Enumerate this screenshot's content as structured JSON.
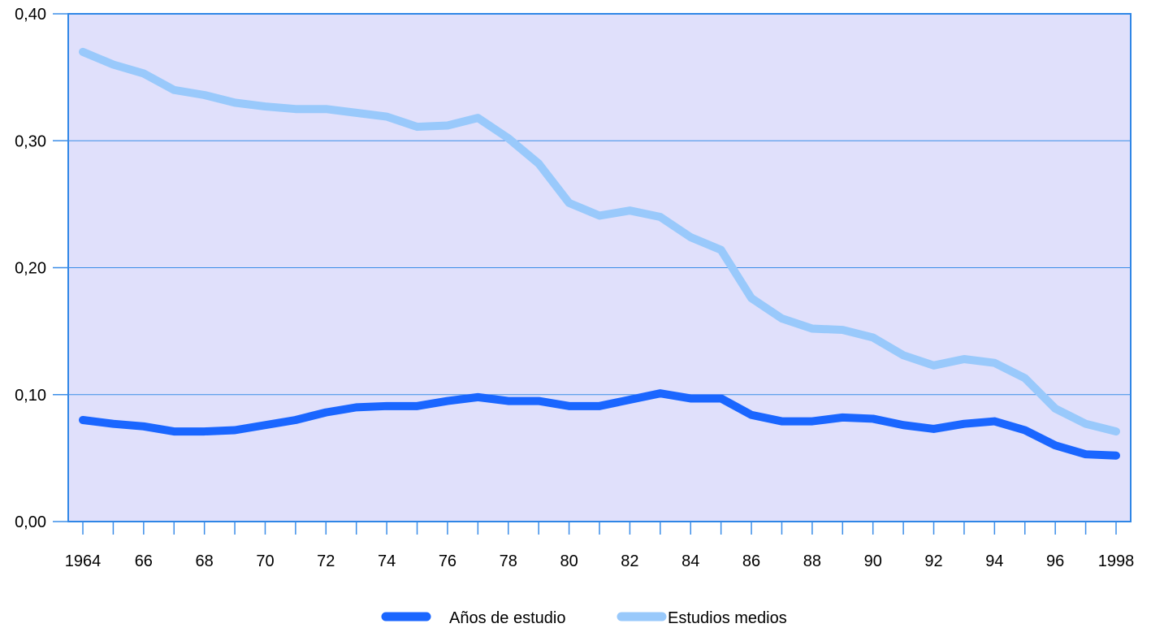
{
  "chart_data": {
    "type": "line",
    "title": "",
    "xlabel": "",
    "ylabel": "",
    "x": [
      1964,
      1965,
      1966,
      1967,
      1968,
      1969,
      1970,
      1971,
      1972,
      1973,
      1974,
      1975,
      1976,
      1977,
      1978,
      1979,
      1980,
      1981,
      1982,
      1983,
      1984,
      1985,
      1986,
      1987,
      1988,
      1989,
      1990,
      1991,
      1992,
      1993,
      1994,
      1995,
      1996,
      1997,
      1998
    ],
    "x_tick_labels": [
      "1964",
      "66",
      "68",
      "70",
      "72",
      "74",
      "76",
      "78",
      "80",
      "82",
      "84",
      "86",
      "88",
      "90",
      "92",
      "94",
      "96",
      "1998"
    ],
    "y_tick_labels": [
      "0,00",
      "0,10",
      "0,20",
      "0,30",
      "0,40"
    ],
    "ylim": [
      0,
      0.4
    ],
    "grid": "horizontal",
    "legend": "bottom-center",
    "background": "#e0e0fb",
    "series": [
      {
        "name": "Años de estudio",
        "color": "#1a66ff",
        "values": [
          0.08,
          0.077,
          0.075,
          0.071,
          0.071,
          0.072,
          0.076,
          0.08,
          0.086,
          0.09,
          0.091,
          0.091,
          0.095,
          0.098,
          0.095,
          0.095,
          0.091,
          0.091,
          0.096,
          0.101,
          0.097,
          0.097,
          0.084,
          0.079,
          0.079,
          0.082,
          0.081,
          0.076,
          0.073,
          0.077,
          0.079,
          0.072,
          0.06,
          0.053,
          0.052
        ]
      },
      {
        "name": "Estudios medios",
        "color": "#99c9fb",
        "values": [
          0.37,
          0.36,
          0.353,
          0.34,
          0.336,
          0.33,
          0.327,
          0.325,
          0.325,
          0.322,
          0.319,
          0.311,
          0.312,
          0.318,
          0.302,
          0.282,
          0.251,
          0.241,
          0.245,
          0.24,
          0.224,
          0.214,
          0.176,
          0.16,
          0.152,
          0.151,
          0.145,
          0.131,
          0.123,
          0.128,
          0.125,
          0.113,
          0.089,
          0.077,
          0.071
        ]
      }
    ]
  }
}
